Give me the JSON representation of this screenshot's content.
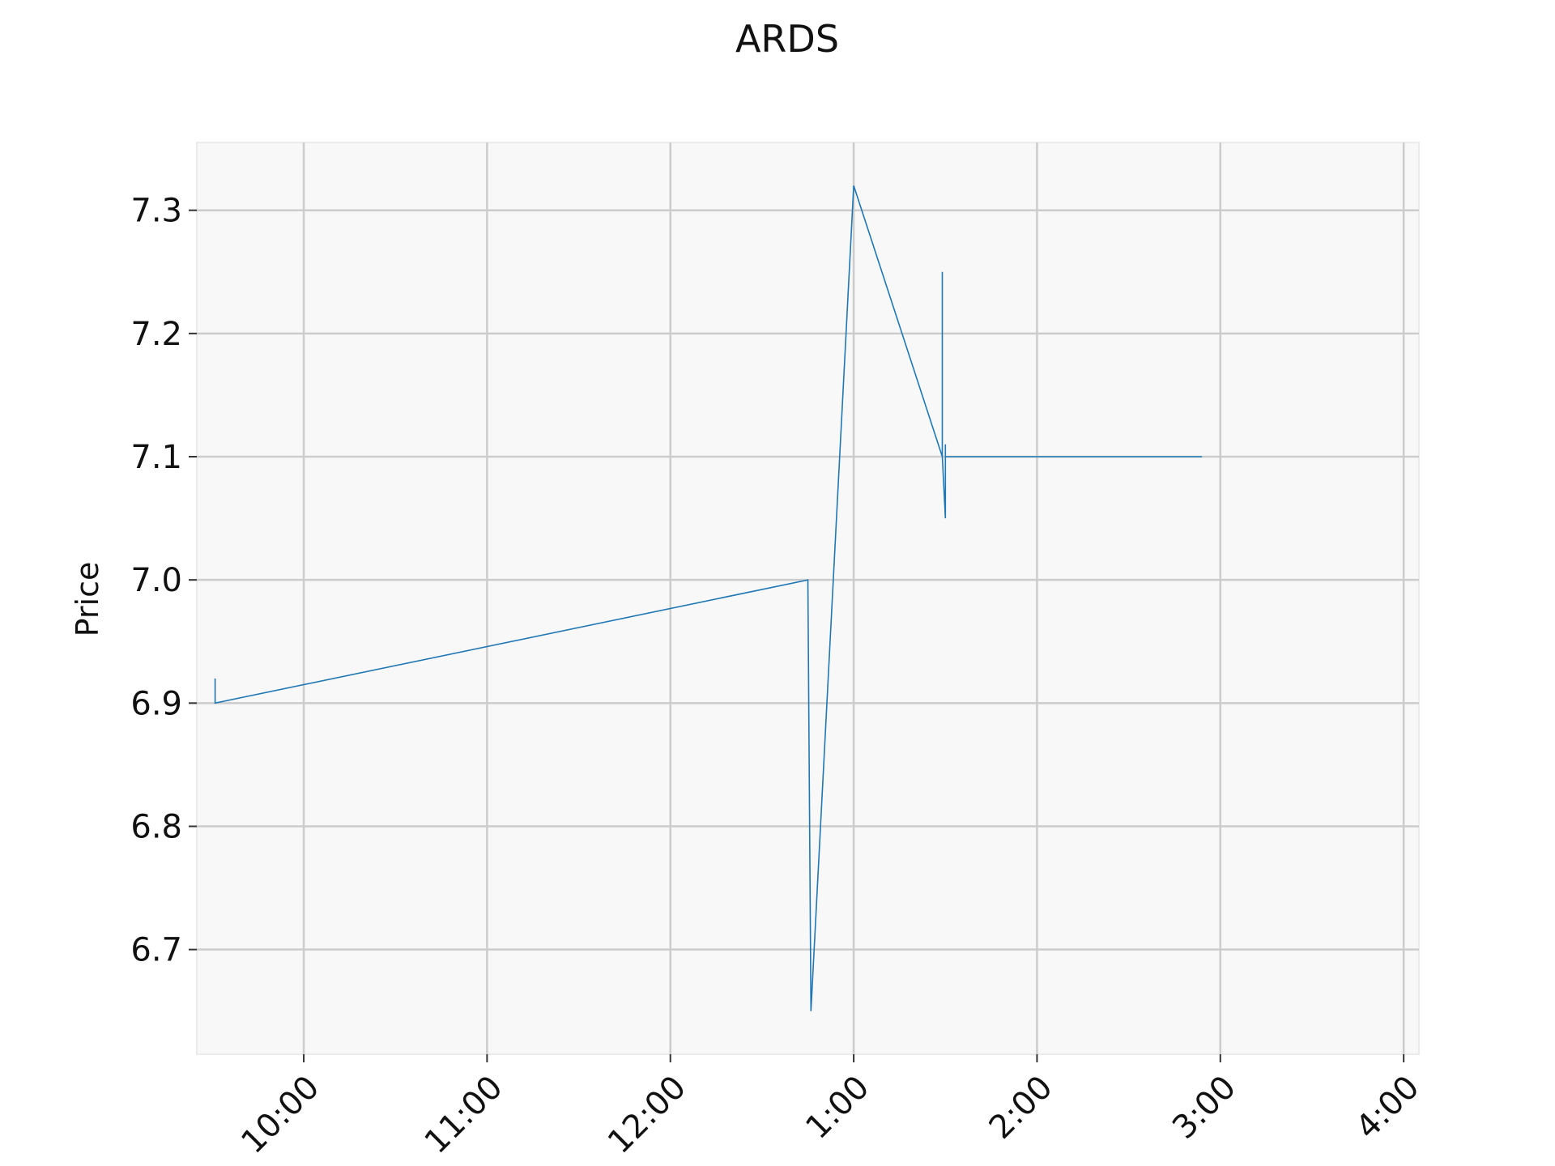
{
  "chart_data": {
    "type": "line",
    "title": "ARDS",
    "xlabel": "",
    "ylabel": "Price",
    "x_unit": "time of day",
    "xlim": [
      "09:25",
      "16:05"
    ],
    "ylim": [
      6.615,
      7.355
    ],
    "x_ticks": [
      {
        "time": "10:00",
        "label": "10:00"
      },
      {
        "time": "11:00",
        "label": "11:00"
      },
      {
        "time": "12:00",
        "label": "12:00"
      },
      {
        "time": "13:00",
        "label": "1:00"
      },
      {
        "time": "14:00",
        "label": "2:00"
      },
      {
        "time": "15:00",
        "label": "3:00"
      },
      {
        "time": "16:00",
        "label": "4:00"
      }
    ],
    "y_ticks": [
      6.7,
      6.8,
      6.9,
      7.0,
      7.1,
      7.2,
      7.3
    ],
    "grid": true,
    "series": [
      {
        "color": "#1f77b4",
        "points": [
          {
            "x": "09:31",
            "y": 6.92
          },
          {
            "x": "09:31",
            "y": 6.9
          },
          {
            "x": "12:45",
            "y": 7.0
          },
          {
            "x": "12:46",
            "y": 6.65
          },
          {
            "x": "13:00",
            "y": 7.32
          },
          {
            "x": "13:29",
            "y": 7.1
          },
          {
            "x": "13:29",
            "y": 7.25
          },
          {
            "x": "13:29",
            "y": 7.1
          },
          {
            "x": "13:30",
            "y": 7.05
          },
          {
            "x": "13:30",
            "y": 7.11
          },
          {
            "x": "13:30",
            "y": 7.1
          },
          {
            "x": "14:54",
            "y": 7.1
          }
        ]
      }
    ]
  }
}
